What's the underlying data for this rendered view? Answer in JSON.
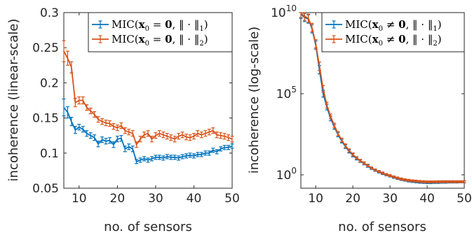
{
  "chart_data": [
    {
      "type": "line",
      "scale": "linear",
      "xlabel": "no. of sensors",
      "ylabel": "incoherence (linear-scale)",
      "xlim": [
        6,
        50
      ],
      "ylim": [
        0.05,
        0.3
      ],
      "xticks": [
        "10",
        "20",
        "30",
        "40",
        "50"
      ],
      "xtick_values": [
        10,
        20,
        30,
        40,
        50
      ],
      "yticks": [
        "0.05",
        "0.1",
        "0.15",
        "0.2",
        "0.25",
        "0.3"
      ],
      "ytick_values": [
        0.05,
        0.1,
        0.15,
        0.2,
        0.25,
        0.3
      ],
      "legend_position": "top-right",
      "x": [
        6,
        7,
        8,
        9,
        10,
        11,
        12,
        13,
        14,
        15,
        16,
        17,
        18,
        19,
        20,
        21,
        22,
        23,
        24,
        25,
        26,
        27,
        28,
        29,
        30,
        31,
        32,
        33,
        34,
        35,
        36,
        37,
        38,
        39,
        40,
        41,
        42,
        43,
        44,
        45,
        46,
        47,
        48,
        49,
        50
      ],
      "series": [
        {
          "name": "MIC(x₀ = 0, ‖·‖₁)",
          "legend_main": "MIC(",
          "legend_rest": " = ",
          "legend_zero": "0",
          "legend_norm": ", ‖ · ‖",
          "legend_sub": "1",
          "legend_close": ")",
          "color": "#0072BD",
          "values": [
            0.165,
            0.158,
            0.145,
            0.133,
            0.137,
            0.134,
            0.128,
            0.125,
            0.122,
            0.113,
            0.119,
            0.117,
            0.118,
            0.112,
            0.12,
            0.121,
            0.106,
            0.109,
            0.106,
            0.088,
            0.09,
            0.092,
            0.09,
            0.092,
            0.094,
            0.094,
            0.093,
            0.095,
            0.094,
            0.094,
            0.093,
            0.095,
            0.096,
            0.097,
            0.096,
            0.098,
            0.098,
            0.1,
            0.1,
            0.104,
            0.102,
            0.106,
            0.108,
            0.108,
            0.11
          ],
          "errors": [
            0.012,
            0.008,
            0.006,
            0.005,
            0.004,
            0.004,
            0.004,
            0.004,
            0.004,
            0.004,
            0.004,
            0.004,
            0.004,
            0.004,
            0.004,
            0.004,
            0.004,
            0.004,
            0.004,
            0.003,
            0.003,
            0.003,
            0.003,
            0.003,
            0.003,
            0.003,
            0.003,
            0.003,
            0.003,
            0.003,
            0.003,
            0.003,
            0.003,
            0.003,
            0.003,
            0.003,
            0.003,
            0.003,
            0.003,
            0.003,
            0.003,
            0.003,
            0.003,
            0.003,
            0.003
          ]
        },
        {
          "name": "MIC(x₀ = 0, ‖·‖₂)",
          "legend_main": "MIC(",
          "legend_rest": " = ",
          "legend_zero": "0",
          "legend_norm": ", ‖ · ‖",
          "legend_sub": "2",
          "legend_close": ")",
          "color": "#D95319",
          "values": [
            0.245,
            0.235,
            0.222,
            0.172,
            0.175,
            0.175,
            0.165,
            0.16,
            0.155,
            0.148,
            0.145,
            0.143,
            0.142,
            0.138,
            0.136,
            0.139,
            0.132,
            0.13,
            0.128,
            0.112,
            0.12,
            0.126,
            0.128,
            0.12,
            0.125,
            0.128,
            0.126,
            0.124,
            0.122,
            0.12,
            0.124,
            0.126,
            0.123,
            0.122,
            0.124,
            0.128,
            0.126,
            0.128,
            0.13,
            0.132,
            0.126,
            0.125,
            0.124,
            0.122,
            0.12
          ],
          "errors": [
            0.015,
            0.01,
            0.008,
            0.006,
            0.005,
            0.005,
            0.004,
            0.004,
            0.004,
            0.004,
            0.004,
            0.004,
            0.004,
            0.004,
            0.004,
            0.004,
            0.004,
            0.004,
            0.004,
            0.004,
            0.004,
            0.004,
            0.004,
            0.004,
            0.004,
            0.004,
            0.004,
            0.004,
            0.004,
            0.004,
            0.004,
            0.004,
            0.004,
            0.004,
            0.004,
            0.004,
            0.004,
            0.004,
            0.004,
            0.004,
            0.004,
            0.004,
            0.004,
            0.004,
            0.004
          ]
        }
      ]
    },
    {
      "type": "line",
      "scale": "log",
      "xlabel": "no. of sensors",
      "ylabel": "incoherence (log-scale)",
      "xlim": [
        6,
        50
      ],
      "ylim": [
        0.15,
        10000000000
      ],
      "xticks": [
        "10",
        "20",
        "30",
        "40",
        "50"
      ],
      "xtick_values": [
        10,
        20,
        30,
        40,
        50
      ],
      "ytick_values": [
        1,
        100000,
        10000000000
      ],
      "ytick_base": [
        "10",
        "10",
        "10"
      ],
      "ytick_exp": [
        "0",
        "5",
        "10"
      ],
      "legend_position": "top-right",
      "x": [
        6,
        7,
        8,
        9,
        10,
        11,
        12,
        13,
        14,
        15,
        16,
        17,
        18,
        19,
        20,
        21,
        22,
        23,
        24,
        25,
        26,
        27,
        28,
        29,
        30,
        31,
        32,
        33,
        34,
        35,
        36,
        37,
        38,
        39,
        40,
        41,
        42,
        43,
        44,
        45,
        46,
        47,
        48,
        49,
        50
      ],
      "series": [
        {
          "name": "MIC(x₀ ≠ 0, ‖·‖₁)",
          "legend_main": "MIC(",
          "legend_rest": " ≠ ",
          "legend_zero": "0",
          "legend_norm": ", ‖ · ‖",
          "legend_sub": "1",
          "legend_close": ")",
          "color": "#0072BD",
          "values": [
            8000000000,
            5000000000,
            4000000000,
            1000000000,
            100000000,
            3000000,
            100000,
            15000,
            3000,
            900,
            300,
            120,
            55,
            28,
            16,
            10,
            7,
            5,
            3.5,
            2.5,
            1.9,
            1.5,
            1.2,
            1.0,
            0.85,
            0.7,
            0.6,
            0.52,
            0.47,
            0.42,
            0.39,
            0.37,
            0.35,
            0.34,
            0.33,
            0.33,
            0.34,
            0.34,
            0.35,
            0.35,
            0.36,
            0.36,
            0.36,
            0.37,
            0.37
          ],
          "err_factor": [
            1.8,
            1.8,
            1.8,
            1.8,
            1.8,
            1.8,
            1.6,
            1.5,
            1.4,
            1.4,
            1.35,
            1.3,
            1.3,
            1.25,
            1.25,
            1.2,
            1.2,
            1.2,
            1.2,
            1.15,
            1.15,
            1.15,
            1.15,
            1.15,
            1.15,
            1.15,
            1.15,
            1.15,
            1.15,
            1.15,
            1.15,
            1.15,
            1.15,
            1.15,
            1.15,
            1.15,
            1.15,
            1.15,
            1.15,
            1.15,
            1.15,
            1.15,
            1.15,
            1.15,
            1.15
          ]
        },
        {
          "name": "MIC(x₀ ≠ 0, ‖·‖₂)",
          "legend_main": "MIC(",
          "legend_rest": " ≠ ",
          "legend_zero": "0",
          "legend_norm": ", ‖ · ‖",
          "legend_sub": "2",
          "legend_close": ")",
          "color": "#D95319",
          "values": [
            9000000000,
            6000000000,
            4500000000,
            1200000000,
            120000000,
            5000000,
            200000,
            20000,
            4000,
            1100,
            350,
            140,
            62,
            32,
            18,
            11,
            7.5,
            5.3,
            3.8,
            2.7,
            2.0,
            1.6,
            1.3,
            1.05,
            0.9,
            0.75,
            0.64,
            0.56,
            0.5,
            0.46,
            0.43,
            0.41,
            0.39,
            0.38,
            0.37,
            0.37,
            0.37,
            0.38,
            0.38,
            0.38,
            0.38,
            0.38,
            0.38,
            0.38,
            0.38
          ],
          "err_factor": [
            1.8,
            1.8,
            1.8,
            1.8,
            1.8,
            1.8,
            1.6,
            1.5,
            1.4,
            1.4,
            1.35,
            1.3,
            1.3,
            1.25,
            1.25,
            1.2,
            1.2,
            1.2,
            1.2,
            1.15,
            1.15,
            1.15,
            1.15,
            1.15,
            1.15,
            1.15,
            1.15,
            1.15,
            1.15,
            1.15,
            1.15,
            1.15,
            1.15,
            1.15,
            1.15,
            1.15,
            1.15,
            1.15,
            1.15,
            1.15,
            1.15,
            1.15,
            1.15,
            1.15,
            1.15
          ]
        }
      ]
    }
  ]
}
